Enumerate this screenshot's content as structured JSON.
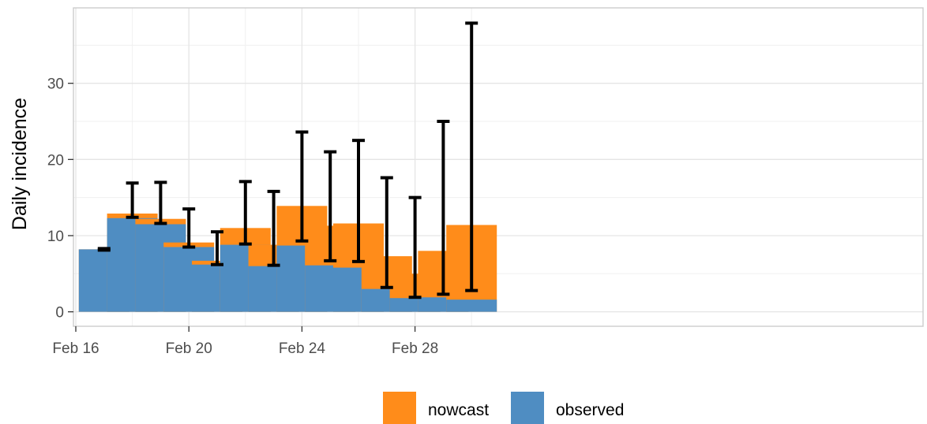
{
  "chart_data": {
    "type": "bar",
    "stacked": true,
    "title": "",
    "xlabel": "",
    "ylabel": "Daily incidence",
    "x_ticks": [
      "Feb 16",
      "Feb 20",
      "Feb 24",
      "Feb 28"
    ],
    "y_ticks": [
      0,
      10,
      20,
      30
    ],
    "ylim": [
      -1.9,
      39.9
    ],
    "grid": true,
    "legend_position": "bottom",
    "legend": [
      {
        "name": "nowcast",
        "color": "#FF8C1A"
      },
      {
        "name": "observed",
        "color": "#4F8DC2"
      }
    ],
    "dates": [
      "Feb 17",
      "Feb 18",
      "Feb 19",
      "Feb 20",
      "Feb 21",
      "Feb 22",
      "Feb 23",
      "Feb 24",
      "Feb 25",
      "Feb 26",
      "Feb 27",
      "Feb 28",
      "Feb 29",
      "Mar 01"
    ],
    "series": [
      {
        "name": "observed",
        "color": "#4F8DC2",
        "values": [
          8.2,
          12.3,
          11.5,
          8.5,
          6.2,
          8.8,
          6.0,
          8.7,
          6.1,
          5.8,
          3.0,
          1.8,
          1.9,
          1.6
        ]
      },
      {
        "name": "nowcast",
        "color": "#FF8C1A",
        "values": [
          8.2,
          12.9,
          12.2,
          9.1,
          6.7,
          11.0,
          8.8,
          13.9,
          11.3,
          11.6,
          7.3,
          5.0,
          8.0,
          11.4
        ]
      }
    ],
    "error_bars": {
      "lower": [
        8.1,
        12.4,
        11.6,
        8.5,
        6.2,
        8.9,
        6.1,
        9.3,
        6.7,
        6.6,
        3.2,
        1.9,
        2.3,
        2.8
      ],
      "upper": [
        8.3,
        16.9,
        17.0,
        13.5,
        10.5,
        17.1,
        15.8,
        23.6,
        21.0,
        22.5,
        17.6,
        15.0,
        25.0,
        37.9
      ]
    }
  }
}
